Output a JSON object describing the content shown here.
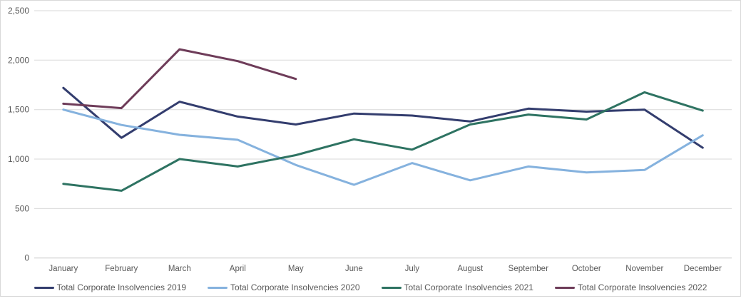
{
  "chart_data": {
    "type": "line",
    "title": "",
    "categories": [
      "January",
      "February",
      "March",
      "April",
      "May",
      "June",
      "July",
      "August",
      "September",
      "October",
      "November",
      "December"
    ],
    "series": [
      {
        "name": "Total Corporate Insolvencies 2019",
        "color": "#333D6E",
        "values": [
          1720,
          1215,
          1580,
          1430,
          1350,
          1460,
          1440,
          1380,
          1510,
          1480,
          1500,
          1115
        ]
      },
      {
        "name": "Total Corporate Insolvencies 2020",
        "color": "#85B2DE",
        "values": [
          1500,
          1345,
          1245,
          1195,
          940,
          740,
          960,
          785,
          925,
          865,
          890,
          1240
        ]
      },
      {
        "name": "Total Corporate Insolvencies 2021",
        "color": "#2E7362",
        "values": [
          750,
          680,
          1000,
          925,
          1040,
          1200,
          1095,
          1350,
          1450,
          1400,
          1675,
          1490
        ]
      },
      {
        "name": "Total Corporate Insolvencies 2022",
        "color": "#6E3C59",
        "values": [
          1560,
          1515,
          2110,
          1990,
          1810
        ]
      }
    ],
    "ylim": [
      0,
      2500
    ],
    "yticks": [
      {
        "value": 0,
        "label": "0"
      },
      {
        "value": 500,
        "label": "500"
      },
      {
        "value": 1000,
        "label": "1,000"
      },
      {
        "value": 1500,
        "label": "1,500"
      },
      {
        "value": 2000,
        "label": "2,000"
      },
      {
        "value": 2500,
        "label": "2,500"
      }
    ],
    "grid": true,
    "legend_position": "bottom"
  },
  "colors": {
    "grid": "#D9D9D9",
    "axis_line": "#C9C9C9",
    "axis_text": "#595959",
    "frame_border": "#D8D8D8",
    "background": "#FFFFFF"
  }
}
